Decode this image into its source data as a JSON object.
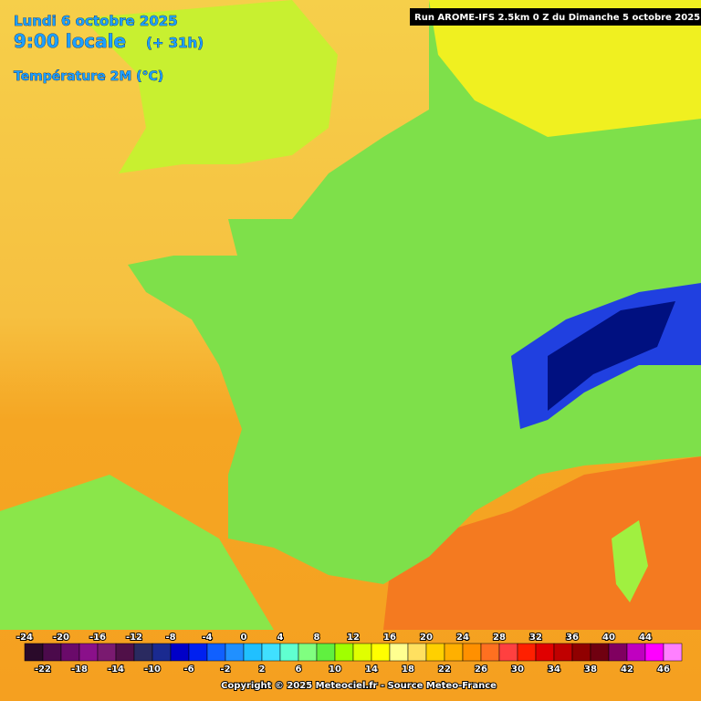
{
  "header": {
    "date": "Lundi 6 octobre 2025",
    "time": "9:00 locale",
    "offset": "(+ 31h)",
    "variable": "Température 2M (°C)",
    "run": "Run AROME-IFS 2.5km 0 Z du Dimanche 5 octobre 2025"
  },
  "legend": {
    "values": [
      -24,
      -22,
      -20,
      -18,
      -16,
      -14,
      -12,
      -10,
      -8,
      -6,
      -4,
      -2,
      0,
      2,
      4,
      6,
      8,
      10,
      12,
      14,
      16,
      18,
      20,
      22,
      24,
      26,
      28,
      30,
      32,
      34,
      36,
      38,
      40,
      42,
      44,
      46
    ],
    "colors": [
      "#2a0a2a",
      "#4b0a4b",
      "#6a0a6a",
      "#8a108a",
      "#7a1a70",
      "#501048",
      "#2a2a60",
      "#1a2a90",
      "#0000c8",
      "#0020f0",
      "#1060ff",
      "#2090ff",
      "#20c0ff",
      "#40e0ff",
      "#60ffd0",
      "#80ff80",
      "#60f040",
      "#a0ff00",
      "#e0ff00",
      "#ffff00",
      "#ffff90",
      "#ffe060",
      "#ffd000",
      "#ffb000",
      "#ff9000",
      "#ff7020",
      "#ff4040",
      "#ff2000",
      "#e00000",
      "#c00000",
      "#900000",
      "#700010",
      "#800060",
      "#c000c0",
      "#ff00ff",
      "#ff80ff"
    ]
  },
  "footer": {
    "copyright": "Copyright © 2025 Meteociel.fr - Source Meteo-France"
  }
}
